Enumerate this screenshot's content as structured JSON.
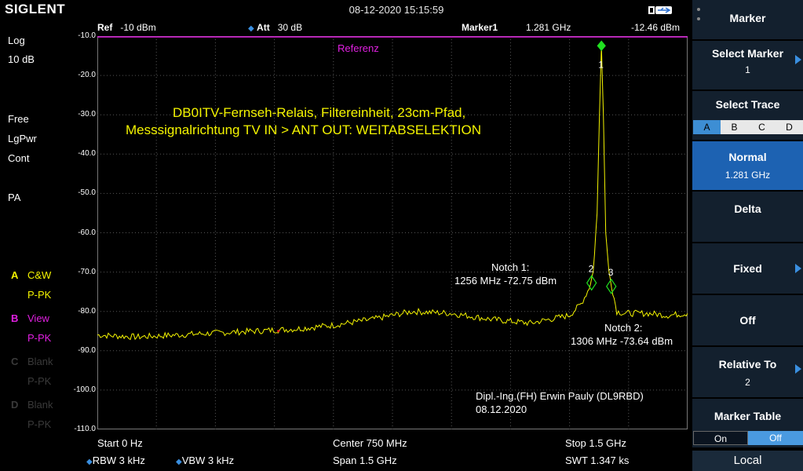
{
  "header": {
    "brand": "SIGLENT",
    "datetime": "08-12-2020 15:15:59",
    "ref_label": "Ref",
    "ref_value": "-10 dBm",
    "att_label": "Att",
    "att_value": "30 dB",
    "marker_label": "Marker1",
    "marker_freq": "1.281 GHz",
    "marker_level": "-12.46 dBm"
  },
  "left_panel": {
    "scale_type": "Log",
    "scale_div": "10 dB",
    "trig": "Free",
    "det": "LgPwr",
    "sweep": "Cont",
    "preamp": "PA",
    "traces": [
      {
        "letter": "A",
        "mode": "C&W",
        "det": "P-PK",
        "color": "#f4f400"
      },
      {
        "letter": "B",
        "mode": "View",
        "det": "P-PK",
        "color": "#e020e0"
      },
      {
        "letter": "C",
        "mode": "Blank",
        "det": "P-PK",
        "color": "#3a3a3a"
      },
      {
        "letter": "D",
        "mode": "Blank",
        "det": "P-PK",
        "color": "#3a3a3a"
      }
    ]
  },
  "plot": {
    "reference_label": "Referenz",
    "title_line1": "DB0ITV-Fernseh-Relais,  Filtereinheit,  23cm-Pfad,",
    "title_line2": "Messsignalrichtung TV IN > ANT OUT:   WEITABSELEKTION",
    "notch1_line1": "Notch 1:",
    "notch1_line2": "1256 MHz  -72.75 dBm",
    "notch2_line1": "Notch 2:",
    "notch2_line2": "1306 MHz  -73.64 dBm",
    "author_line1": "Dipl.-Ing.(FH) Erwin Pauly (DL9RBD)",
    "author_line2": "08.12.2020",
    "marker1_num": "1",
    "marker2_num": "2",
    "marker3_num": "3",
    "y_ticks": [
      "-10.0",
      "-20.0",
      "-30.0",
      "-40.0",
      "-50.0",
      "-60.0",
      "-70.0",
      "-80.0",
      "-90.0",
      "-100.0",
      "-110.0"
    ]
  },
  "chart_data": {
    "type": "line",
    "x_unit": "MHz",
    "y_unit": "dBm",
    "xlim": [
      0,
      1500
    ],
    "ylim": [
      -110,
      -10
    ],
    "series": [
      {
        "points": [
          [
            0,
            -86
          ],
          [
            100,
            -86.5
          ],
          [
            200,
            -86
          ],
          [
            300,
            -85.5
          ],
          [
            400,
            -85
          ],
          [
            500,
            -84.5
          ],
          [
            600,
            -83.5
          ],
          [
            700,
            -82
          ],
          [
            800,
            -80
          ],
          [
            900,
            -80.5
          ],
          [
            1000,
            -82
          ],
          [
            1050,
            -82.5
          ],
          [
            1100,
            -83
          ],
          [
            1150,
            -82
          ],
          [
            1200,
            -81
          ],
          [
            1230,
            -78
          ],
          [
            1250,
            -74
          ],
          [
            1260,
            -70
          ],
          [
            1270,
            -55
          ],
          [
            1276,
            -30
          ],
          [
            1281,
            -12.5
          ],
          [
            1286,
            -30
          ],
          [
            1292,
            -60
          ],
          [
            1300,
            -70
          ],
          [
            1310,
            -75
          ],
          [
            1320,
            -80
          ],
          [
            1340,
            -80.5
          ],
          [
            1400,
            -80.5
          ],
          [
            1450,
            -81
          ],
          [
            1500,
            -80.5
          ]
        ]
      }
    ],
    "markers": [
      {
        "label": "1",
        "x": 1281,
        "y": -12.46
      },
      {
        "label": "2",
        "x": 1256,
        "y": -72.75
      },
      {
        "label": "3",
        "x": 1306,
        "y": -73.64
      }
    ],
    "reference_level": -10
  },
  "bottom": {
    "start": "Start  0 Hz",
    "center": "Center  750 MHz",
    "stop": "Stop  1.5 GHz",
    "rbw": "RBW  3 kHz",
    "vbw": "VBW  3 kHz",
    "span": "Span     1.5 GHz",
    "swt": "SWT  1.347 ks"
  },
  "menu": {
    "title": "Marker",
    "select_marker": "Select Marker",
    "select_marker_value": "1",
    "select_trace": "Select Trace",
    "trace_options": [
      "A",
      "B",
      "C",
      "D"
    ],
    "normal": "Normal",
    "normal_value": "1.281 GHz",
    "delta": "Delta",
    "fixed": "Fixed",
    "off": "Off",
    "relative_to": "Relative To",
    "relative_to_value": "2",
    "marker_table": "Marker Table",
    "toggle_on": "On",
    "toggle_off": "Off",
    "local": "Local"
  }
}
